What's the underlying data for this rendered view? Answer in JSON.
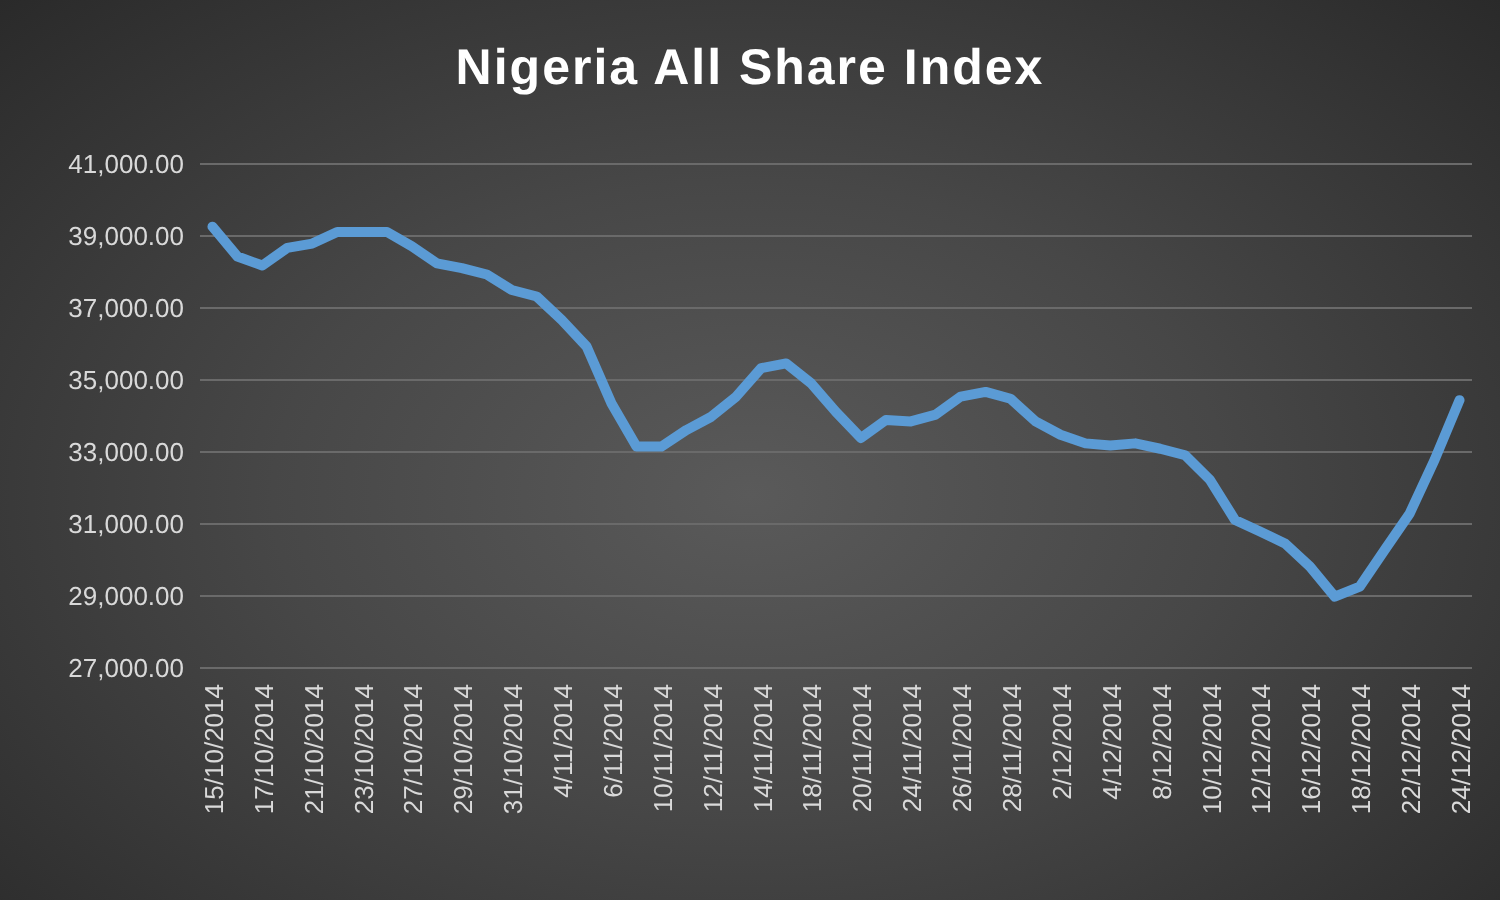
{
  "chart_data": {
    "type": "line",
    "title": "Nigeria All Share Index",
    "categories": [
      "15/10/2014",
      null,
      "17/10/2014",
      null,
      "21/10/2014",
      null,
      "23/10/2014",
      null,
      "27/10/2014",
      null,
      "29/10/2014",
      null,
      "31/10/2014",
      null,
      "4/11/2014",
      null,
      "6/11/2014",
      null,
      "10/11/2014",
      null,
      "12/11/2014",
      null,
      "14/11/2014",
      null,
      "18/11/2014",
      null,
      "20/11/2014",
      null,
      "24/11/2014",
      null,
      "26/11/2014",
      null,
      "28/11/2014",
      null,
      "2/12/2014",
      null,
      "4/12/2014",
      null,
      "8/12/2014",
      null,
      "10/12/2014",
      null,
      "12/12/2014",
      null,
      "16/12/2014",
      null,
      "18/12/2014",
      null,
      "22/12/2014",
      null,
      "24/12/2014"
    ],
    "series": [
      {
        "color": "#5b9bd5",
        "values": [
          39260,
          38430,
          38180,
          38670,
          38790,
          39110,
          39110,
          39110,
          38710,
          38240,
          38110,
          37930,
          37500,
          37320,
          36670,
          35930,
          34350,
          33150,
          33150,
          33610,
          33980,
          34540,
          35330,
          35460,
          34910,
          34110,
          33390,
          33890,
          33850,
          34040,
          34540,
          34670,
          34480,
          33850,
          33480,
          33240,
          33180,
          33240,
          33090,
          32910,
          32220,
          31110,
          30790,
          30460,
          29820,
          28980,
          29260,
          30280,
          31290,
          32780,
          34440
        ]
      }
    ],
    "ylim": [
      27000,
      41000
    ],
    "yticks": [
      {
        "value": 27000,
        "label": "27,000.00"
      },
      {
        "value": 29000,
        "label": "29,000.00"
      },
      {
        "value": 31000,
        "label": "31,000.00"
      },
      {
        "value": 33000,
        "label": "33,000.00"
      },
      {
        "value": 35000,
        "label": "35,000.00"
      },
      {
        "value": 37000,
        "label": "37,000.00"
      },
      {
        "value": 39000,
        "label": "39,000.00"
      },
      {
        "value": 41000,
        "label": "41,000.00"
      }
    ],
    "grid": "y",
    "marker": "none",
    "line_style": "solid"
  }
}
